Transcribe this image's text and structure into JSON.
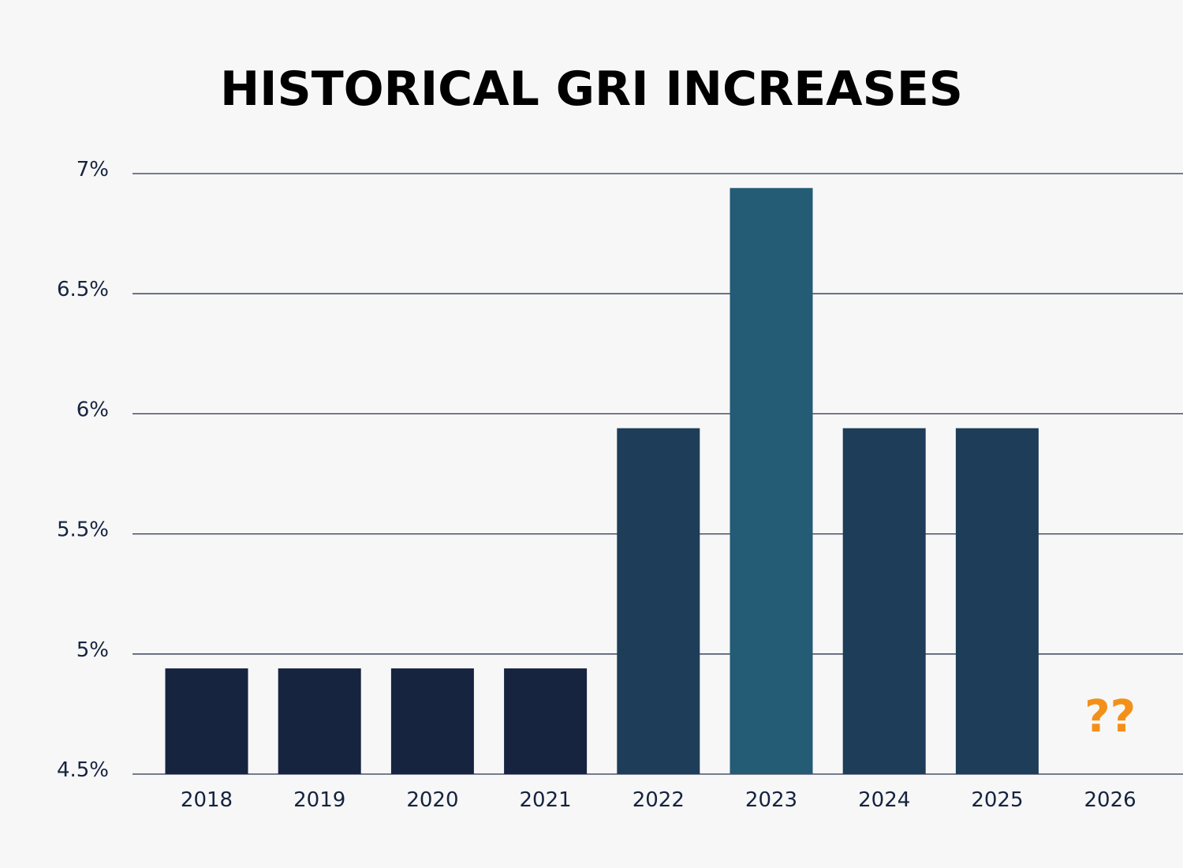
{
  "chart_data": {
    "type": "bar",
    "title": "HISTORICAL GRI INCREASES",
    "categories": [
      "2018",
      "2019",
      "2020",
      "2021",
      "2022",
      "2023",
      "2024",
      "2025",
      "2026"
    ],
    "values": [
      4.94,
      4.94,
      4.94,
      4.94,
      5.94,
      6.94,
      5.94,
      5.94,
      null
    ],
    "ylim": [
      4.5,
      7
    ],
    "yticks": [
      {
        "value": 7,
        "label": "7%"
      },
      {
        "value": 6.5,
        "label": "6.5%"
      },
      {
        "value": 6,
        "label": "6%"
      },
      {
        "value": 5.5,
        "label": "5.5%"
      },
      {
        "value": 5,
        "label": "5%"
      },
      {
        "value": 4.5,
        "label": "4.5%"
      }
    ],
    "bar_colors": [
      "#16243f",
      "#16243f",
      "#16243f",
      "#16243f",
      "#1d3d59",
      "#245b75",
      "#1d3d59",
      "#1d3d59",
      null
    ],
    "grid": true,
    "gridline_color": "#2a3350",
    "annotations": [
      {
        "category": "2026",
        "text": "??",
        "color": "#f39019"
      }
    ]
  }
}
